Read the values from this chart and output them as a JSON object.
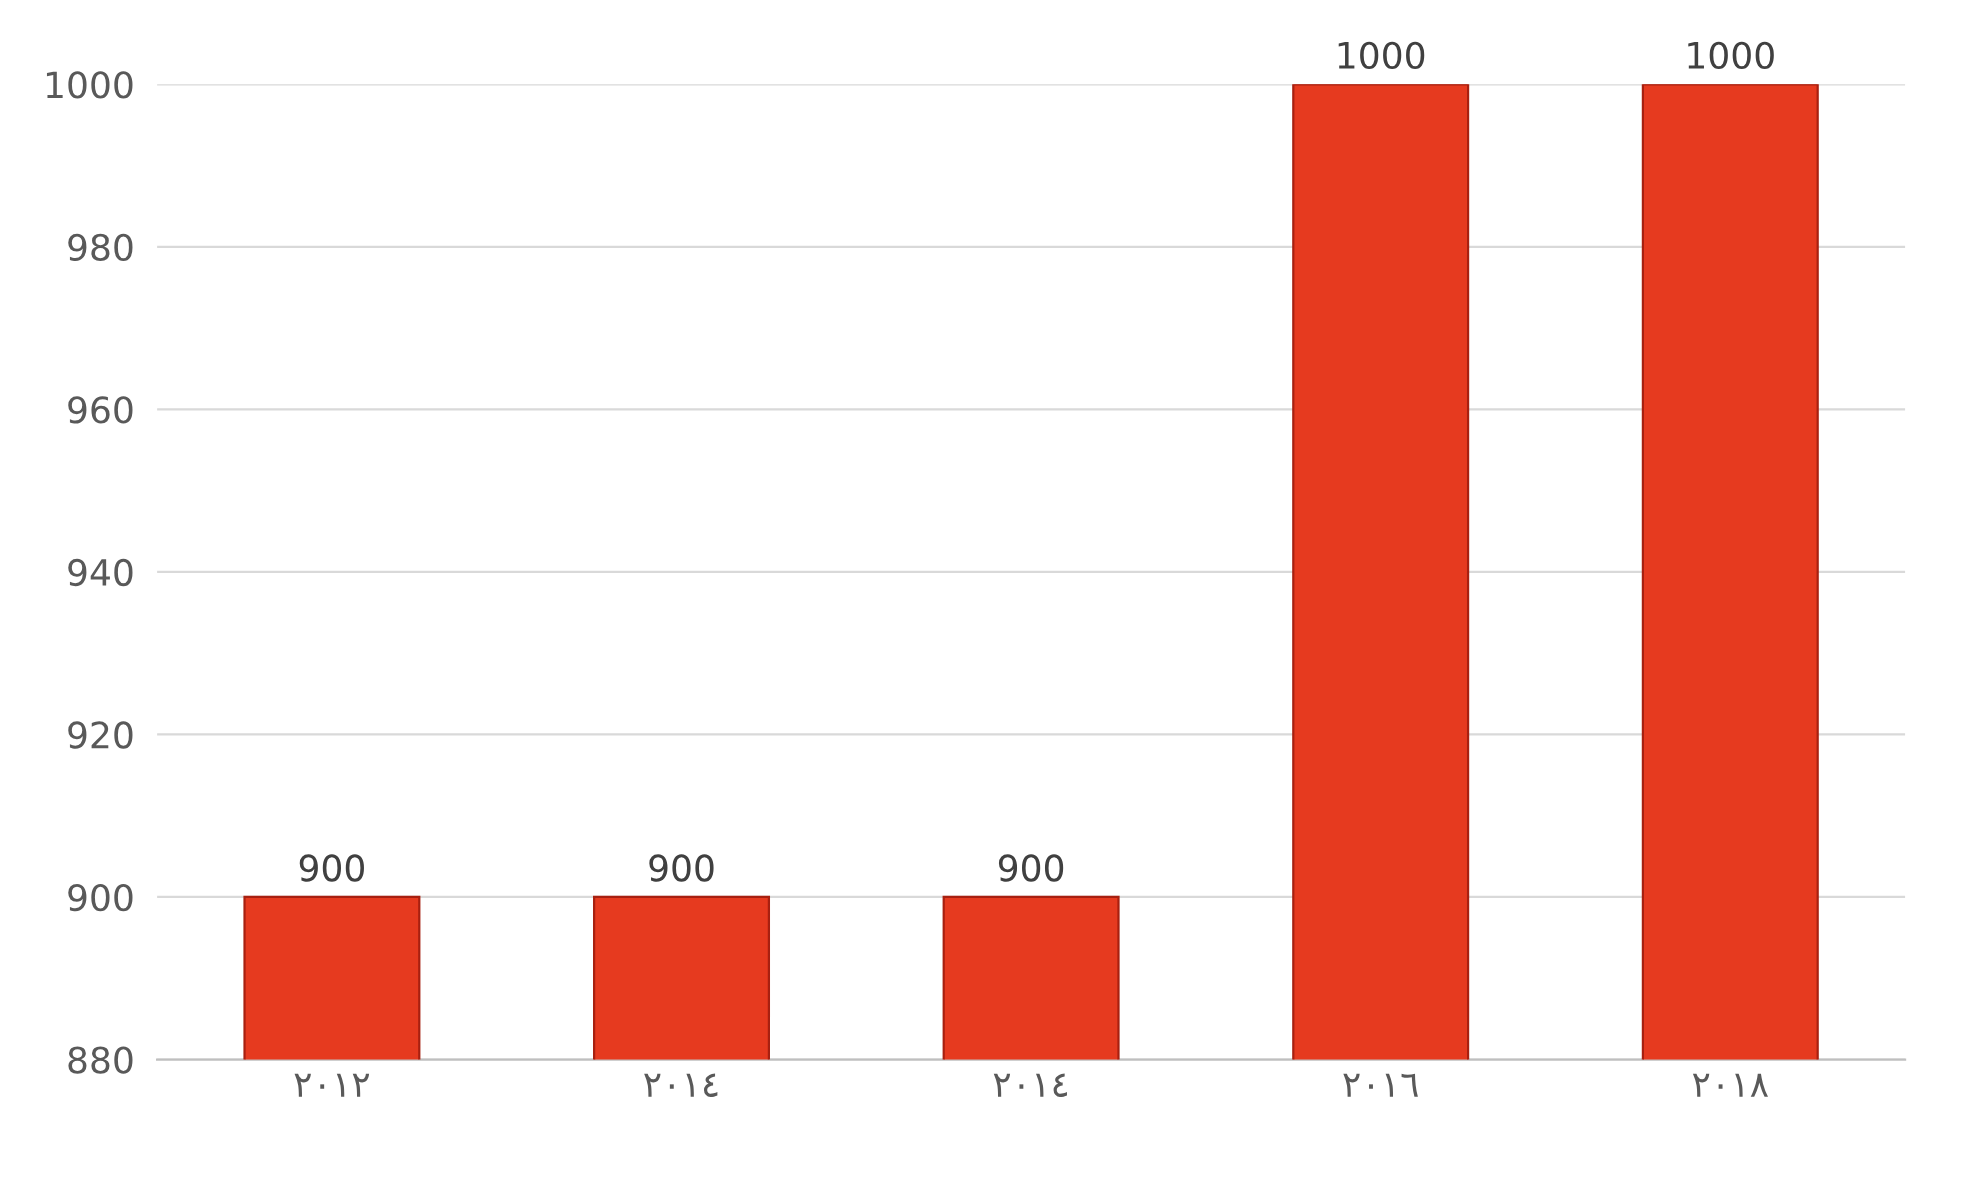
{
  "chart_data": {
    "type": "bar",
    "categories": [
      "٢٠١٢",
      "٢٠١٤",
      "٢٠١٤",
      "٢٠١٦",
      "٢٠١٨"
    ],
    "values": [
      900,
      900,
      900,
      1000,
      1000
    ],
    "color": "#e63a1f",
    "ylim": [
      880,
      1000
    ],
    "yticks": [
      880,
      900,
      920,
      940,
      960,
      980,
      1000
    ],
    "grid": "y",
    "data_labels": true
  }
}
